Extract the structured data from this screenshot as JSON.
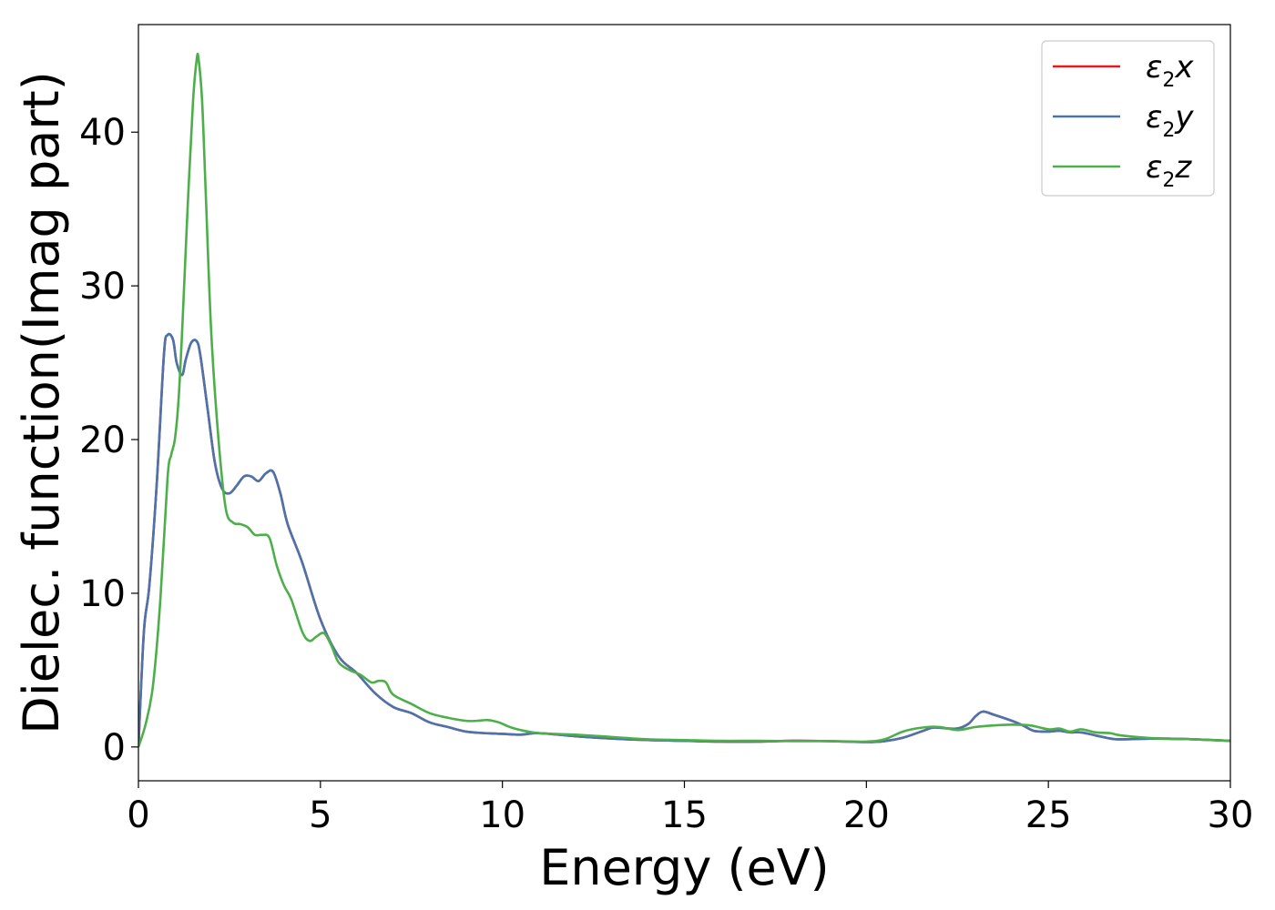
{
  "chart_data": {
    "type": "line",
    "xlabel": "Energy (eV)",
    "ylabel": "Dielec. function(Imag part)",
    "xlim": [
      0,
      30
    ],
    "ylim": [
      -2.2,
      47
    ],
    "xticks": [
      0,
      5,
      10,
      15,
      20,
      25,
      30
    ],
    "yticks": [
      0,
      10,
      20,
      30,
      40
    ],
    "grid": false,
    "legend_position": "top-right",
    "series": [
      {
        "name": "ε2x",
        "legend_symbol": "ε",
        "legend_sub": "2",
        "legend_var": "x",
        "color": "#e41a1c",
        "x": [
          0,
          0.15,
          0.3,
          0.5,
          0.7,
          0.8,
          0.95,
          1.05,
          1.2,
          1.3,
          1.45,
          1.6,
          1.7,
          1.9,
          2.1,
          2.3,
          2.5,
          2.7,
          2.9,
          3.1,
          3.3,
          3.5,
          3.7,
          3.9,
          4.1,
          4.5,
          5.0,
          5.5,
          6.0,
          6.5,
          7.0,
          7.5,
          8.0,
          8.5,
          9.0,
          9.5,
          10.0,
          10.5,
          11.0,
          12.0,
          13.0,
          14.0,
          15.0,
          16.0,
          17.0,
          18.0,
          19.0,
          20.0,
          20.5,
          21.0,
          21.5,
          21.8,
          22.0,
          22.5,
          22.8,
          23.0,
          23.2,
          23.5,
          24.0,
          24.3,
          24.6,
          25.0,
          25.3,
          25.6,
          25.9,
          26.3,
          26.7,
          27.0,
          28.0,
          29.0,
          30.0
        ],
        "values": [
          0,
          7.5,
          10.5,
          17,
          25.5,
          26.8,
          26.5,
          25,
          24.2,
          25.2,
          26.3,
          26.4,
          25.5,
          22,
          18.5,
          16.8,
          16.5,
          17,
          17.6,
          17.6,
          17.3,
          17.8,
          17.9,
          16.5,
          14.5,
          12,
          8.3,
          5.9,
          4.8,
          3.5,
          2.6,
          2.2,
          1.6,
          1.3,
          1.0,
          0.9,
          0.85,
          0.8,
          0.9,
          0.7,
          0.55,
          0.45,
          0.4,
          0.35,
          0.35,
          0.4,
          0.38,
          0.32,
          0.38,
          0.6,
          1.0,
          1.25,
          1.25,
          1.2,
          1.5,
          2.0,
          2.3,
          2.1,
          1.7,
          1.4,
          1.05,
          1.0,
          1.05,
          0.95,
          0.95,
          0.75,
          0.55,
          0.5,
          0.55,
          0.5,
          0.4
        ]
      },
      {
        "name": "ε2y",
        "legend_symbol": "ε",
        "legend_sub": "2",
        "legend_var": "y",
        "color": "#4a74ab",
        "x": [
          0,
          0.15,
          0.3,
          0.5,
          0.7,
          0.8,
          0.95,
          1.05,
          1.2,
          1.3,
          1.45,
          1.6,
          1.7,
          1.9,
          2.1,
          2.3,
          2.5,
          2.7,
          2.9,
          3.1,
          3.3,
          3.5,
          3.7,
          3.9,
          4.1,
          4.5,
          5.0,
          5.5,
          6.0,
          6.5,
          7.0,
          7.5,
          8.0,
          8.5,
          9.0,
          9.5,
          10.0,
          10.5,
          11.0,
          12.0,
          13.0,
          14.0,
          15.0,
          16.0,
          17.0,
          18.0,
          19.0,
          20.0,
          20.5,
          21.0,
          21.5,
          21.8,
          22.0,
          22.5,
          22.8,
          23.0,
          23.2,
          23.5,
          24.0,
          24.3,
          24.6,
          25.0,
          25.3,
          25.6,
          25.9,
          26.3,
          26.7,
          27.0,
          28.0,
          29.0,
          30.0
        ],
        "values": [
          0,
          7.5,
          10.5,
          17,
          25.5,
          26.8,
          26.5,
          25,
          24.2,
          25.2,
          26.3,
          26.4,
          25.5,
          22,
          18.5,
          16.8,
          16.5,
          17,
          17.6,
          17.6,
          17.3,
          17.8,
          17.9,
          16.5,
          14.5,
          12,
          8.3,
          5.9,
          4.8,
          3.5,
          2.6,
          2.2,
          1.6,
          1.3,
          1.0,
          0.9,
          0.85,
          0.8,
          0.9,
          0.7,
          0.55,
          0.45,
          0.4,
          0.35,
          0.35,
          0.4,
          0.38,
          0.32,
          0.38,
          0.6,
          1.0,
          1.25,
          1.25,
          1.2,
          1.5,
          2.0,
          2.3,
          2.1,
          1.7,
          1.4,
          1.05,
          1.0,
          1.05,
          0.95,
          0.95,
          0.75,
          0.55,
          0.5,
          0.55,
          0.5,
          0.4
        ]
      },
      {
        "name": "ε2z",
        "legend_symbol": "ε",
        "legend_sub": "2",
        "legend_var": "z",
        "color": "#4daf4a",
        "x": [
          0,
          0.2,
          0.4,
          0.6,
          0.8,
          0.9,
          1.0,
          1.1,
          1.2,
          1.35,
          1.5,
          1.6,
          1.65,
          1.75,
          1.85,
          2.0,
          2.2,
          2.4,
          2.6,
          2.8,
          3.0,
          3.2,
          3.4,
          3.6,
          3.8,
          4.0,
          4.2,
          4.5,
          4.7,
          4.9,
          5.1,
          5.3,
          5.5,
          5.8,
          6.1,
          6.4,
          6.6,
          6.8,
          7.0,
          7.5,
          8.0,
          8.5,
          9.0,
          9.3,
          9.6,
          9.9,
          10.2,
          10.5,
          11.0,
          12.0,
          13.0,
          14.0,
          15.0,
          16.0,
          17.0,
          18.0,
          19.0,
          20.0,
          20.5,
          21.0,
          21.5,
          22.0,
          22.5,
          23.0,
          23.5,
          24.0,
          24.5,
          25.0,
          25.3,
          25.6,
          25.9,
          26.3,
          26.7,
          27.0,
          28.0,
          29.0,
          30.0
        ],
        "values": [
          0,
          1.5,
          4,
          9.5,
          17.5,
          19,
          20,
          22.5,
          27,
          35,
          42,
          44.7,
          44.8,
          42,
          36,
          27,
          20,
          15.5,
          14.6,
          14.5,
          14.3,
          13.8,
          13.8,
          13.6,
          11.8,
          10.5,
          9.6,
          7.5,
          6.9,
          7.2,
          7.4,
          6.6,
          5.5,
          5.0,
          4.7,
          4.2,
          4.3,
          4.2,
          3.4,
          2.8,
          2.2,
          1.9,
          1.7,
          1.7,
          1.75,
          1.6,
          1.3,
          1.1,
          0.9,
          0.8,
          0.65,
          0.5,
          0.45,
          0.4,
          0.4,
          0.38,
          0.38,
          0.35,
          0.5,
          1.0,
          1.25,
          1.3,
          1.1,
          1.3,
          1.4,
          1.45,
          1.4,
          1.15,
          1.2,
          1.0,
          1.15,
          0.95,
          0.9,
          0.75,
          0.55,
          0.5,
          0.4
        ]
      }
    ]
  }
}
